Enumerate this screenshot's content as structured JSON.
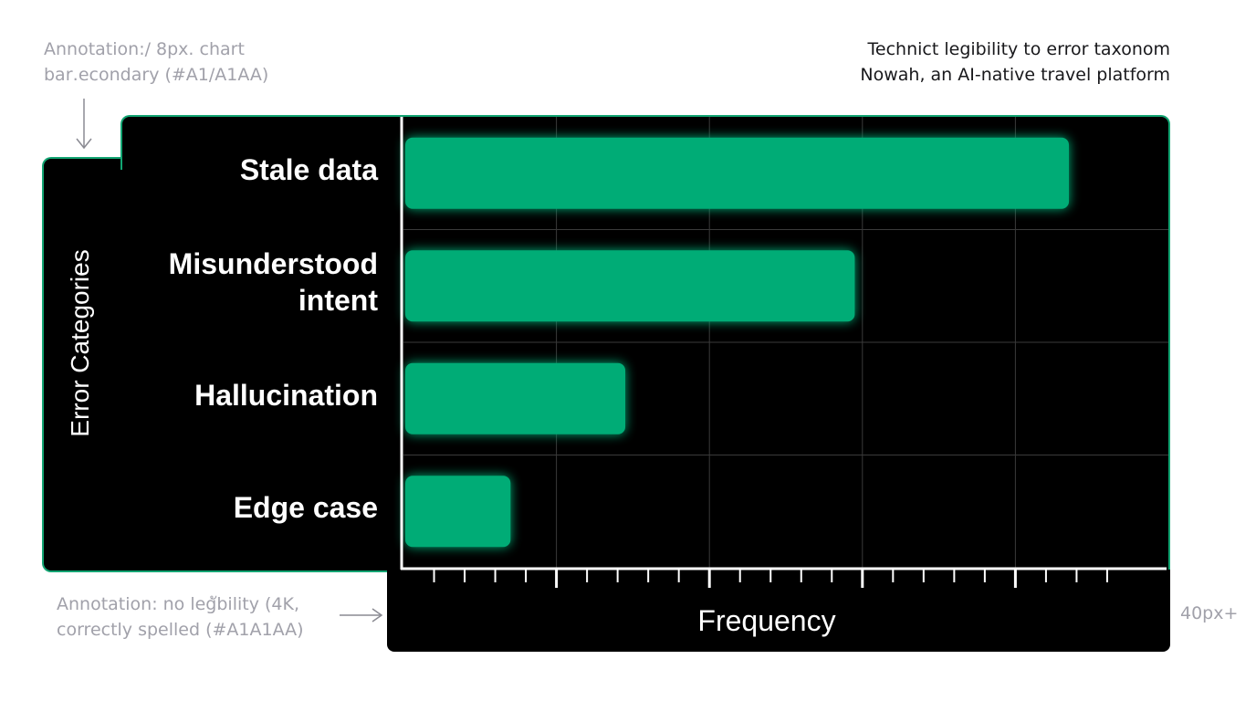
{
  "annotations": {
    "top_line1": "Annotation:/ 8px. chart",
    "top_line2": "bar․econdary (#A1/A1AA)",
    "bottom_line1": "Annotation: no legัbility (4K,",
    "bottom_line2": "correctly spelled (#A1A1AA)",
    "right": "40px+"
  },
  "header": {
    "line1": "Technict legibility to error taxonom",
    "line2": "Nowah, an AI-native travel platform"
  },
  "colors": {
    "bar": "#00ac76",
    "panel": "#000000",
    "border": "#12a472",
    "grid": "#3a3a3a",
    "annotation": "#a1a1aa"
  },
  "chart_data": {
    "type": "bar",
    "orientation": "horizontal",
    "categories": [
      "Stale data",
      "Misunderstood intent",
      "Hallucination",
      "Edge case"
    ],
    "category_lines": [
      [
        "Stale data"
      ],
      [
        "Misunderstood",
        "intent"
      ],
      [
        "Hallucination"
      ],
      [
        "Edge case"
      ]
    ],
    "values": [
      87,
      59,
      29,
      14
    ],
    "xlim": [
      0,
      100
    ],
    "xlabel": "Frequency",
    "ylabel": "Error Categories",
    "grid": true,
    "legend": "none"
  }
}
